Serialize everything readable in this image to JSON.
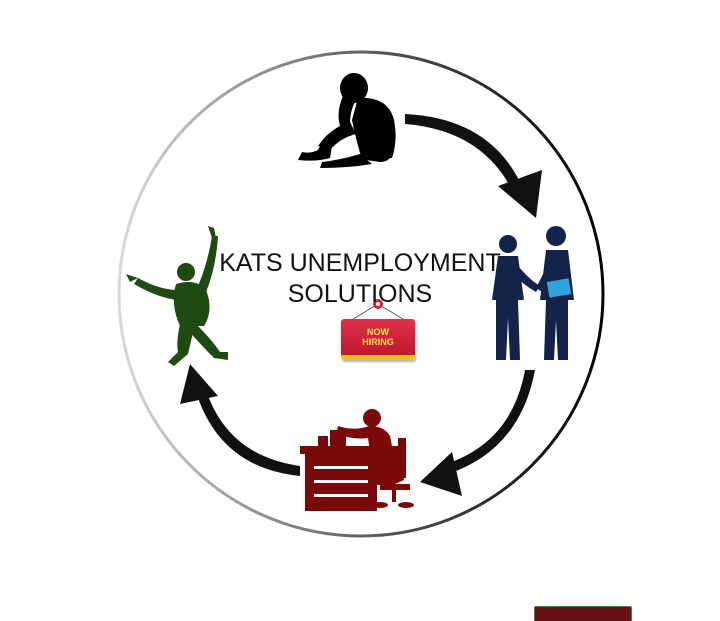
{
  "diagram": {
    "title_line1": "KATS UNEMPLOYMENT",
    "title_line2": "SOLUTIONS",
    "sign_line1": "NOW",
    "sign_line2": "HIRING"
  },
  "colors": {
    "ring": "#111111",
    "arrow": "#111111",
    "unemployed_figure": "#000000",
    "interview_figures": "#13234a",
    "worker_figure": "#7a0a0a",
    "success_figure": "#1f4a12",
    "sign_background": "#d42038",
    "sign_text": "#ffe34d",
    "sign_border": "#f3c200"
  },
  "stages": [
    {
      "icon": "sitting-sad-person-icon"
    },
    {
      "icon": "handshake-interview-icon"
    },
    {
      "icon": "office-worker-at-desk-icon"
    },
    {
      "icon": "jumping-happy-person-icon"
    }
  ]
}
